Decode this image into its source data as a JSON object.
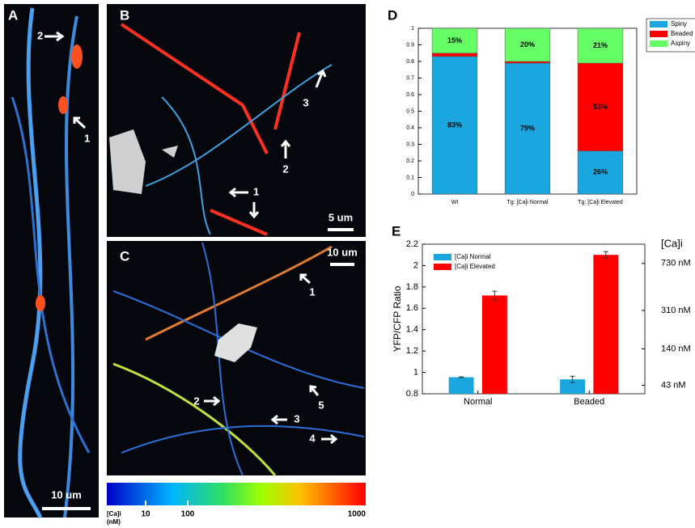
{
  "panels": {
    "A": {
      "letter": "A",
      "arrows": [
        "2",
        "1"
      ],
      "scale_bar": "10 um"
    },
    "B": {
      "letter": "B",
      "arrows": [
        "1",
        "2",
        "3"
      ],
      "scale_bar": "5 um"
    },
    "C": {
      "letter": "C",
      "arrows": [
        "1",
        "2",
        "3",
        "4",
        "5"
      ],
      "scale_bar": "10 um"
    }
  },
  "colorbar": {
    "label": [
      "[Ca]i",
      "(nM)"
    ],
    "ticks": [
      "10",
      "100",
      "1000"
    ]
  },
  "chart_data": [
    {
      "type": "bar",
      "panel": "D",
      "stacked": true,
      "categories": [
        "Wt",
        "Tg: [Ca]i Normal",
        "Tg: [Ca]i Elevated"
      ],
      "series": [
        {
          "name": "Spiny",
          "color": "#1aa7e0",
          "values": [
            0.83,
            0.79,
            0.26
          ],
          "value_labels": [
            "83%",
            "79%",
            "26%"
          ]
        },
        {
          "name": "Beaded",
          "color": "#ff0000",
          "values": [
            0.02,
            0.01,
            0.53
          ],
          "value_labels": [
            null,
            null,
            "53%"
          ]
        },
        {
          "name": "Aspiny",
          "color": "#66ff66",
          "values": [
            0.15,
            0.2,
            0.21
          ],
          "value_labels": [
            "15%",
            "20%",
            "21%"
          ]
        }
      ],
      "ylim": [
        0,
        1
      ],
      "yticks": [
        0,
        0.1,
        0.2,
        0.3,
        0.4,
        0.5,
        0.6,
        0.7,
        0.8,
        0.9,
        1
      ],
      "legend": "outside-right"
    },
    {
      "type": "bar",
      "panel": "E",
      "stacked": false,
      "ylabel": "YFP/CFP Ratio",
      "y2label": "[Ca]i",
      "categories": [
        "Normal",
        "Beaded"
      ],
      "series": [
        {
          "name": "[Ca]i Normal",
          "color": "#1aa7e0",
          "values": [
            0.955,
            0.935
          ],
          "errors": [
            0.003,
            0.03
          ]
        },
        {
          "name": "[Ca]i Elevated",
          "color": "#ff0000",
          "values": [
            1.72,
            2.1
          ],
          "errors": [
            0.04,
            0.03
          ]
        }
      ],
      "ylim": [
        0.8,
        2.2
      ],
      "yticks": [
        0.8,
        1,
        1.2,
        1.4,
        1.6,
        1.8,
        2,
        2.2
      ],
      "y2lim": [
        0.8,
        2.2
      ],
      "y2ticks": [
        {
          "value": 0.88,
          "label": "43 nM"
        },
        {
          "value": 1.22,
          "label": "140 nM"
        },
        {
          "value": 1.58,
          "label": "310 nM"
        },
        {
          "value": 2.02,
          "label": "730 nM"
        }
      ],
      "legend": "upper-left"
    }
  ]
}
